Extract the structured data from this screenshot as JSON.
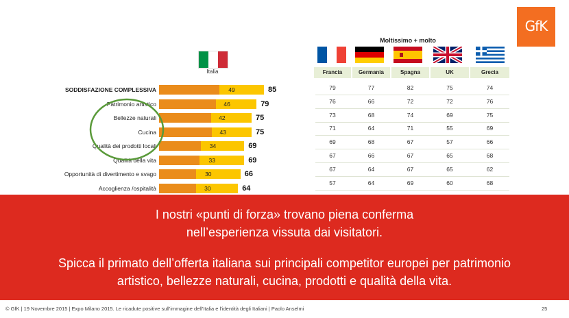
{
  "logo_text": "GfK",
  "italy_label": "Italia",
  "table_title": "Moltissimo + molto",
  "colors": {
    "dark_bar": "#ea8c1b",
    "light_bar": "#fcc600",
    "banner": "#dd2a1f",
    "circle": "#5a9a3a",
    "logo": "#f36e21"
  },
  "chart_data": {
    "type": "bar",
    "stacked": true,
    "orientation": "horizontal",
    "categories": [
      "SODDISFAZIONE COMPLESSIVA",
      "Patrimonio artistico",
      "Bellezze naturali",
      "Cucina",
      "Qualità dei prodotti locali",
      "Qualità della vita",
      "Opportunità di divertimento e svago",
      "Accoglienza /ospitalità"
    ],
    "series": [
      {
        "values": [
          49,
          46,
          42,
          43,
          34,
          33,
          30,
          30
        ]
      },
      {
        "values": [
          36,
          33,
          33,
          32,
          35,
          36,
          36,
          34
        ]
      }
    ],
    "totals": [
      85,
      79,
      75,
      75,
      69,
      69,
      66,
      64
    ],
    "bold_category_index": 0,
    "highlighted_categories": [
      "Bellezze naturali",
      "Cucina"
    ]
  },
  "table": {
    "columns": [
      "Francia",
      "Germania",
      "Spagna",
      "UK",
      "Grecia"
    ],
    "flags": [
      "france-flag",
      "germany-flag",
      "spain-flag",
      "uk-flag",
      "greece-flag"
    ],
    "rows": [
      [
        "79",
        "77",
        "82",
        "75",
        "74"
      ],
      [
        "76",
        "66",
        "72",
        "72",
        "76"
      ],
      [
        "73",
        "68",
        "74",
        "69",
        "75"
      ],
      [
        "71",
        "64",
        "71",
        "55",
        "69"
      ],
      [
        "69",
        "68",
        "67",
        "57",
        "66"
      ],
      [
        "67",
        "66",
        "67",
        "65",
        "68"
      ],
      [
        "67",
        "64",
        "67",
        "65",
        "62"
      ],
      [
        "57",
        "64",
        "69",
        "60",
        "68"
      ]
    ]
  },
  "banner": {
    "line1": "I nostri «punti di forza» trovano piena conferma",
    "line2": "nell’esperienza vissuta dai visitatori.",
    "line3": "Spicca il primato dell’offerta italiana sui principali competitor europei per patrimonio",
    "line4": "artistico, bellezze naturali, cucina, prodotti e qualità della vita."
  },
  "footer": "© GfK | 19 Novembre 2015 | Expo Milano 2015. Le ricadute positive sull’immagine dell’Italia e l’identità degli Italiani | Paolo Anselmi",
  "page_number": "25"
}
